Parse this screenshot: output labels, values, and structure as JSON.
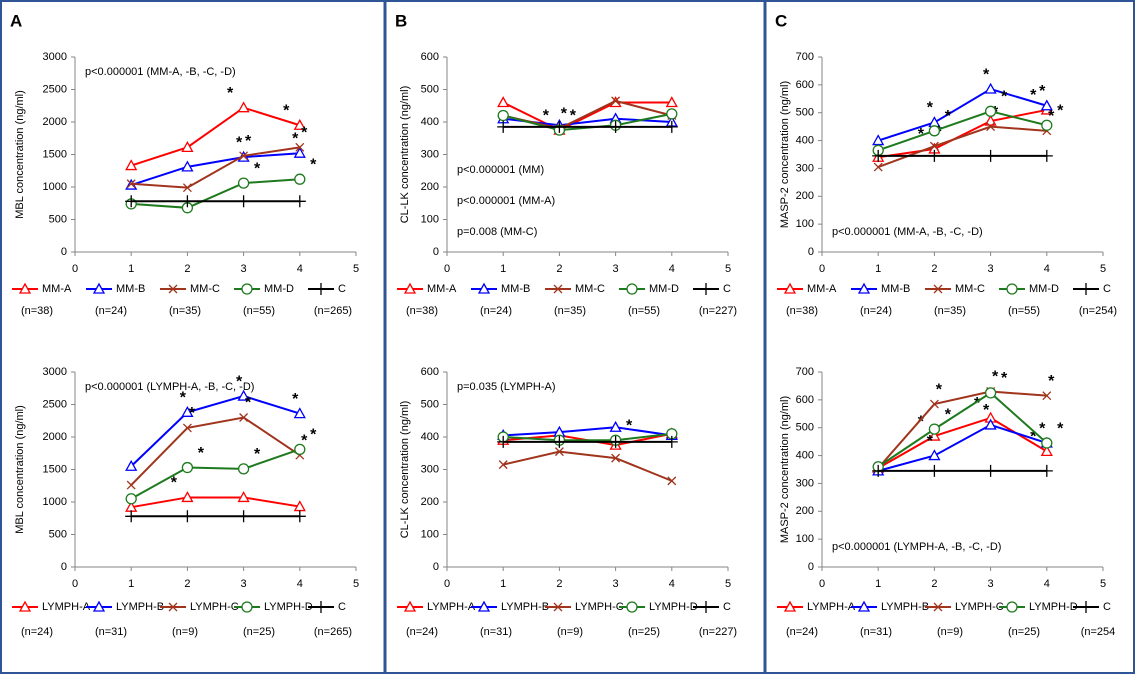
{
  "chart_data": [
    {
      "type": "line",
      "panel": "A",
      "y_label": "MBL concentration (ng/ml)",
      "xlim": [
        0,
        5
      ],
      "xticks": [
        0,
        1,
        2,
        3,
        4,
        5
      ],
      "ylim": [
        0,
        3000
      ],
      "yticks": [
        0,
        500,
        1000,
        1500,
        2000,
        2500,
        3000
      ],
      "x": [
        1,
        2,
        3,
        4
      ],
      "star_label": "*",
      "annotation_corner": "top-left",
      "annotations": [
        {
          "text": "p<0.000001 (MM-A, -B, -C, -D)",
          "color": "#000000"
        }
      ],
      "series": [
        {
          "name": "MM-A",
          "n": "(n=38)",
          "color": "#ff0000",
          "marker": "triangle",
          "values": [
            1330,
            1610,
            2220,
            1950
          ],
          "stars": [
            3,
            4
          ]
        },
        {
          "name": "MM-B",
          "n": "(n=24)",
          "color": "#0000ff",
          "marker": "triangle",
          "values": [
            1030,
            1310,
            1460,
            1520
          ],
          "stars": [
            3,
            4
          ]
        },
        {
          "name": "MM-C",
          "n": "(n=35)",
          "color": "#a0341c",
          "marker": "x",
          "values": [
            1050,
            990,
            1480,
            1610
          ],
          "stars": [
            3,
            4
          ]
        },
        {
          "name": "MM-D",
          "n": "(n=55)",
          "color": "#1e7a1e",
          "marker": "circle",
          "values": [
            740,
            680,
            1060,
            1120
          ],
          "stars": [
            3,
            4
          ]
        },
        {
          "name": "C",
          "n": "(n=265)",
          "color": "#000000",
          "marker": "plus",
          "values": [
            780,
            780,
            780,
            780
          ],
          "stars": []
        }
      ]
    },
    {
      "type": "line",
      "panel": "B",
      "y_label": "CL-LK concentration (ng/ml)",
      "xlim": [
        0,
        5
      ],
      "xticks": [
        0,
        1,
        2,
        3,
        4,
        5
      ],
      "ylim": [
        0,
        600
      ],
      "yticks": [
        0,
        100,
        200,
        300,
        400,
        500,
        600
      ],
      "x": [
        1,
        2,
        3,
        4
      ],
      "star_label": "*",
      "annotation_corner": "bottom-left",
      "annotations": [
        {
          "text": "p<0.000001 (MM)",
          "color": "#000000"
        },
        {
          "text": "p<0.000001 (MM-A)",
          "color": "#ff0000"
        },
        {
          "text": "p=0.008 (MM-C)",
          "color": "#a0341c"
        }
      ],
      "series": [
        {
          "name": "MM-A",
          "n": "(n=38)",
          "color": "#ff0000",
          "marker": "triangle",
          "values": [
            460,
            375,
            460,
            460
          ],
          "stars": [
            2
          ]
        },
        {
          "name": "MM-B",
          "n": "(n=24)",
          "color": "#0000ff",
          "marker": "triangle",
          "values": [
            410,
            390,
            410,
            400
          ],
          "stars": []
        },
        {
          "name": "MM-C",
          "n": "(n=35)",
          "color": "#a0341c",
          "marker": "x",
          "values": [
            420,
            380,
            465,
            420
          ],
          "stars": [
            2
          ]
        },
        {
          "name": "MM-D",
          "n": "(n=55)",
          "color": "#1e7a1e",
          "marker": "circle",
          "values": [
            420,
            375,
            390,
            425
          ],
          "stars": [
            2
          ]
        },
        {
          "name": "C",
          "n": "(n=227)",
          "color": "#000000",
          "marker": "plus",
          "values": [
            385,
            385,
            385,
            385
          ],
          "stars": []
        }
      ]
    },
    {
      "type": "line",
      "panel": "C",
      "y_label": "MASP-2 concentration (ng/ml)",
      "xlim": [
        0,
        5
      ],
      "xticks": [
        0,
        1,
        2,
        3,
        4,
        5
      ],
      "ylim": [
        0,
        700
      ],
      "yticks": [
        0,
        100,
        200,
        300,
        400,
        500,
        600,
        700
      ],
      "x": [
        1,
        2,
        3,
        4
      ],
      "star_label": "*",
      "annotation_corner": "bottom-left",
      "annotations": [
        {
          "text": "p<0.000001 (MM-A, -B, -C, -D)",
          "color": "#000000"
        }
      ],
      "series": [
        {
          "name": "MM-A",
          "n": "(n=38)",
          "color": "#ff0000",
          "marker": "triangle",
          "values": [
            340,
            370,
            470,
            510
          ],
          "stars": [
            2,
            4
          ]
        },
        {
          "name": "MM-B",
          "n": "(n=24)",
          "color": "#0000ff",
          "marker": "triangle",
          "values": [
            400,
            465,
            585,
            525
          ],
          "stars": [
            2,
            3,
            4
          ]
        },
        {
          "name": "MM-C",
          "n": "(n=35)",
          "color": "#a0341c",
          "marker": "x",
          "values": [
            305,
            380,
            450,
            435
          ],
          "stars": [
            2,
            3,
            4
          ]
        },
        {
          "name": "MM-D",
          "n": "(n=55)",
          "color": "#1e7a1e",
          "marker": "circle",
          "values": [
            365,
            435,
            505,
            455
          ],
          "stars": [
            2,
            3,
            4
          ]
        },
        {
          "name": "C",
          "n": "(n=254)",
          "color": "#000000",
          "marker": "plus",
          "values": [
            345,
            345,
            345,
            345
          ],
          "stars": []
        }
      ]
    },
    {
      "type": "line",
      "y_label": "MBL concentration (ng/ml)",
      "xlim": [
        0,
        5
      ],
      "xticks": [
        0,
        1,
        2,
        3,
        4,
        5
      ],
      "ylim": [
        0,
        3000
      ],
      "yticks": [
        0,
        500,
        1000,
        1500,
        2000,
        2500,
        3000
      ],
      "x": [
        1,
        2,
        3,
        4
      ],
      "star_label": "*",
      "annotation_corner": "top-left",
      "annotations": [
        {
          "text": "p<0.000001 (LYMPH-A, -B, -C, -D)",
          "color": "#000000"
        }
      ],
      "series": [
        {
          "name": "LYMPH-A",
          "n": "(n=24)",
          "color": "#ff0000",
          "marker": "triangle",
          "values": [
            920,
            1070,
            1070,
            930
          ],
          "stars": [
            2
          ]
        },
        {
          "name": "LYMPH-B",
          "n": "(n=31)",
          "color": "#0000ff",
          "marker": "triangle",
          "values": [
            1550,
            2380,
            2630,
            2360
          ],
          "stars": [
            2,
            3,
            4
          ]
        },
        {
          "name": "LYMPH-C",
          "n": "(n=9)",
          "color": "#a0341c",
          "marker": "x",
          "values": [
            1260,
            2140,
            2300,
            1720
          ],
          "stars": [
            2,
            3,
            4
          ]
        },
        {
          "name": "LYMPH-D",
          "n": "(n=25)",
          "color": "#1e7a1e",
          "marker": "circle",
          "values": [
            1050,
            1530,
            1510,
            1810
          ],
          "stars": [
            2,
            3,
            4
          ]
        },
        {
          "name": "C",
          "n": "(n=265)",
          "color": "#000000",
          "marker": "plus",
          "values": [
            780,
            780,
            780,
            780
          ],
          "stars": []
        }
      ]
    },
    {
      "type": "line",
      "y_label": "CL-LK concentration (ng/ml)",
      "xlim": [
        0,
        5
      ],
      "xticks": [
        0,
        1,
        2,
        3,
        4,
        5
      ],
      "ylim": [
        0,
        600
      ],
      "yticks": [
        0,
        100,
        200,
        300,
        400,
        500,
        600
      ],
      "x": [
        1,
        2,
        3,
        4
      ],
      "star_label": "*",
      "annotation_corner": "top-left",
      "annotations": [
        {
          "text": "p=0.035 (LYMPH-A)",
          "color": "#ff0000"
        }
      ],
      "series": [
        {
          "name": "LYMPH-A",
          "n": "(n=24)",
          "color": "#ff0000",
          "marker": "triangle",
          "values": [
            390,
            405,
            375,
            410
          ],
          "stars": []
        },
        {
          "name": "LYMPH-B",
          "n": "(n=31)",
          "color": "#0000ff",
          "marker": "triangle",
          "values": [
            405,
            415,
            430,
            405
          ],
          "stars": []
        },
        {
          "name": "LYMPH-C",
          "n": "(n=9)",
          "color": "#a0341c",
          "marker": "x",
          "values": [
            315,
            355,
            335,
            265
          ],
          "stars": []
        },
        {
          "name": "LYMPH-D",
          "n": "(n=25)",
          "color": "#1e7a1e",
          "marker": "circle",
          "values": [
            400,
            390,
            390,
            410
          ],
          "stars": [
            3
          ]
        },
        {
          "name": "C",
          "n": "(n=227)",
          "color": "#000000",
          "marker": "plus",
          "values": [
            385,
            385,
            385,
            385
          ],
          "stars": []
        }
      ]
    },
    {
      "type": "line",
      "y_label": "MASP-2 concentration (ng/ml)",
      "xlim": [
        0,
        5
      ],
      "xticks": [
        0,
        1,
        2,
        3,
        4,
        5
      ],
      "ylim": [
        0,
        700
      ],
      "yticks": [
        0,
        100,
        200,
        300,
        400,
        500,
        600,
        700
      ],
      "x": [
        1,
        2,
        3,
        4
      ],
      "star_label": "*",
      "annotation_corner": "bottom-left",
      "annotations": [
        {
          "text": "p<0.000001 (LYMPH-A, -B, -C, -D)",
          "color": "#000000"
        }
      ],
      "series": [
        {
          "name": "LYMPH-A",
          "n": "(n=24)",
          "color": "#ff0000",
          "marker": "triangle",
          "values": [
            355,
            470,
            535,
            415
          ],
          "stars": [
            2,
            3,
            4
          ]
        },
        {
          "name": "LYMPH-B",
          "n": "(n=31)",
          "color": "#0000ff",
          "marker": "triangle",
          "values": [
            345,
            400,
            510,
            445
          ],
          "stars": [
            2,
            3,
            4
          ]
        },
        {
          "name": "LYMPH-C",
          "n": "(n=9)",
          "color": "#a0341c",
          "marker": "x",
          "values": [
            355,
            585,
            630,
            615
          ],
          "stars": [
            2,
            3,
            4
          ]
        },
        {
          "name": "LYMPH-D",
          "n": "(n=25)",
          "color": "#1e7a1e",
          "marker": "circle",
          "values": [
            360,
            495,
            625,
            445
          ],
          "stars": [
            2,
            3,
            4
          ]
        },
        {
          "name": "C",
          "n": "(n=254",
          "color": "#000000",
          "marker": "plus",
          "values": [
            345,
            345,
            345,
            345
          ],
          "stars": []
        }
      ]
    }
  ]
}
